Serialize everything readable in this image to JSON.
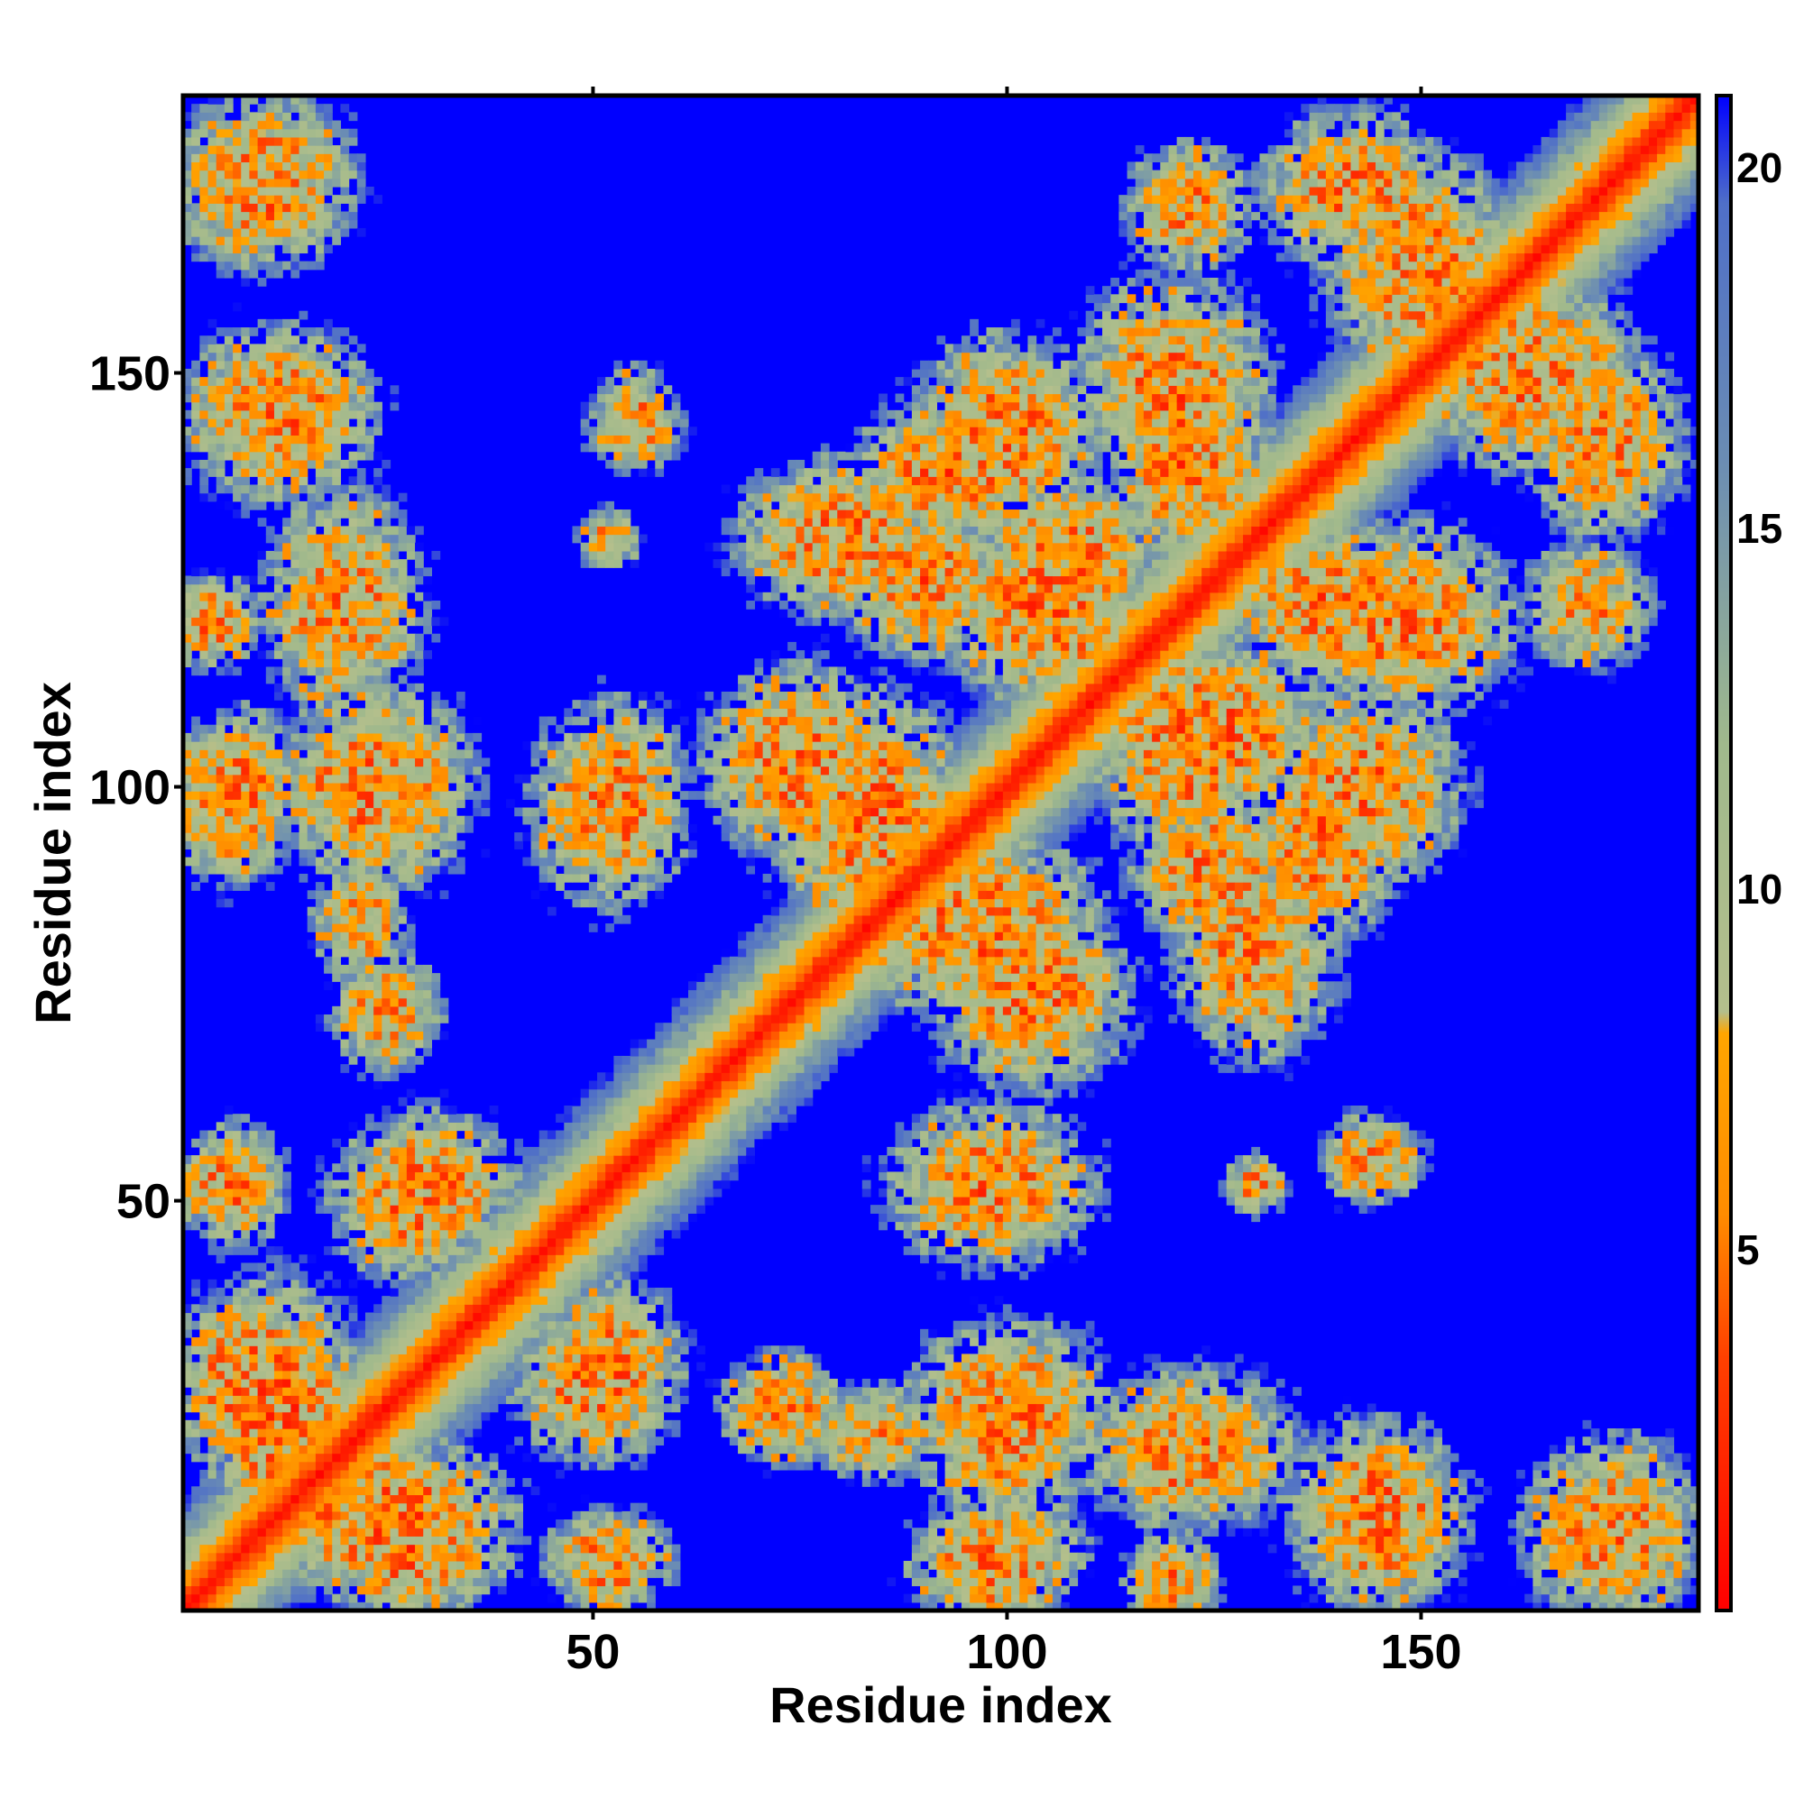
{
  "chart_data": {
    "type": "heatmap",
    "title": "",
    "xlabel": "Residue index",
    "ylabel": "Residue index",
    "xlim": [
      1,
      183
    ],
    "ylim": [
      1,
      183
    ],
    "x_ticks": [
      50,
      100,
      150
    ],
    "y_ticks": [
      50,
      100,
      150
    ],
    "x_tick_labels": [
      "50",
      "100",
      "150"
    ],
    "y_tick_labels": [
      "50",
      "100",
      "150"
    ],
    "colorbar": {
      "range": [
        0,
        21
      ],
      "ticks": [
        5,
        10,
        15,
        20
      ],
      "tick_labels": [
        "5",
        "10",
        "15",
        "20"
      ],
      "stops": [
        {
          "value": 0,
          "color": "#ff0000"
        },
        {
          "value": 3.5,
          "color": "#ff4000"
        },
        {
          "value": 5.5,
          "color": "#ff8c00"
        },
        {
          "value": 8,
          "color": "#ffa500"
        },
        {
          "value": 8.3,
          "color": "#b4bf8c"
        },
        {
          "value": 12,
          "color": "#a0b98c"
        },
        {
          "value": 16,
          "color": "#6a8cb4"
        },
        {
          "value": 19.5,
          "color": "#4f6fc8"
        },
        {
          "value": 21,
          "color": "#0000ff"
        }
      ]
    },
    "diagonal": {
      "dist_0": 1.0,
      "band_width_residues": 14
    },
    "contact_regions": [
      {
        "x": 10,
        "y": 172,
        "rx": 11,
        "ry": 10,
        "intensity": 0.45
      },
      {
        "x": 12,
        "y": 145,
        "rx": 12,
        "ry": 8,
        "intensity": 0.6
      },
      {
        "x": 4,
        "y": 120,
        "rx": 6,
        "ry": 6,
        "intensity": 0.4
      },
      {
        "x": 18,
        "y": 120,
        "rx": 8,
        "ry": 7,
        "intensity": 0.4
      },
      {
        "x": 6,
        "y": 98,
        "rx": 8,
        "ry": 10,
        "intensity": 0.55
      },
      {
        "x": 22,
        "y": 100,
        "rx": 12,
        "ry": 8,
        "intensity": 0.5
      },
      {
        "x": 5,
        "y": 52,
        "rx": 6,
        "ry": 6,
        "intensity": 0.4
      },
      {
        "x": 8,
        "y": 28,
        "rx": 9,
        "ry": 12,
        "intensity": 0.6
      },
      {
        "x": 22,
        "y": 84,
        "rx": 6,
        "ry": 8,
        "intensity": 0.35
      },
      {
        "x": 30,
        "y": 52,
        "rx": 11,
        "ry": 9,
        "intensity": 0.55
      },
      {
        "x": 25,
        "y": 12,
        "rx": 16,
        "ry": 10,
        "intensity": 0.7
      },
      {
        "x": 52,
        "y": 98,
        "rx": 10,
        "ry": 10,
        "intensity": 0.55
      },
      {
        "x": 50,
        "y": 28,
        "rx": 10,
        "ry": 10,
        "intensity": 0.5
      },
      {
        "x": 52,
        "y": 7,
        "rx": 8,
        "ry": 6,
        "intensity": 0.45
      },
      {
        "x": 73,
        "y": 25,
        "rx": 8,
        "ry": 7,
        "intensity": 0.35
      },
      {
        "x": 75,
        "y": 103,
        "rx": 12,
        "ry": 12,
        "intensity": 0.55
      },
      {
        "x": 80,
        "y": 130,
        "rx": 13,
        "ry": 10,
        "intensity": 0.55
      },
      {
        "x": 93,
        "y": 138,
        "rx": 12,
        "ry": 9,
        "intensity": 0.6
      },
      {
        "x": 98,
        "y": 52,
        "rx": 13,
        "ry": 10,
        "intensity": 0.5
      },
      {
        "x": 97,
        "y": 83,
        "rx": 15,
        "ry": 12,
        "intensity": 0.6
      },
      {
        "x": 100,
        "y": 24,
        "rx": 13,
        "ry": 12,
        "intensity": 0.55
      },
      {
        "x": 100,
        "y": 8,
        "rx": 10,
        "ry": 7,
        "intensity": 0.45
      },
      {
        "x": 107,
        "y": 127,
        "rx": 12,
        "ry": 12,
        "intensity": 0.55
      },
      {
        "x": 122,
        "y": 105,
        "rx": 12,
        "ry": 14,
        "intensity": 0.6
      },
      {
        "x": 120,
        "y": 148,
        "rx": 12,
        "ry": 14,
        "intensity": 0.55
      },
      {
        "x": 125,
        "y": 90,
        "rx": 10,
        "ry": 10,
        "intensity": 0.55
      },
      {
        "x": 122,
        "y": 20,
        "rx": 14,
        "ry": 10,
        "intensity": 0.45
      },
      {
        "x": 142,
        "y": 172,
        "rx": 12,
        "ry": 10,
        "intensity": 0.45
      },
      {
        "x": 140,
        "y": 122,
        "rx": 14,
        "ry": 10,
        "intensity": 0.6
      },
      {
        "x": 143,
        "y": 100,
        "rx": 12,
        "ry": 12,
        "intensity": 0.55
      },
      {
        "x": 145,
        "y": 12,
        "rx": 11,
        "ry": 12,
        "intensity": 0.6
      },
      {
        "x": 163,
        "y": 150,
        "rx": 14,
        "ry": 12,
        "intensity": 0.5
      },
      {
        "x": 170,
        "y": 122,
        "rx": 8,
        "ry": 8,
        "intensity": 0.35
      },
      {
        "x": 174,
        "y": 10,
        "rx": 10,
        "ry": 12,
        "intensity": 0.4
      },
      {
        "x": 145,
        "y": 55,
        "rx": 6,
        "ry": 5,
        "intensity": 0.3
      },
      {
        "x": 130,
        "y": 52,
        "rx": 4,
        "ry": 4,
        "intensity": 0.25
      },
      {
        "x": 55,
        "y": 143,
        "rx": 6,
        "ry": 5,
        "intensity": 0.3
      },
      {
        "x": 52,
        "y": 130,
        "rx": 4,
        "ry": 4,
        "intensity": 0.25
      }
    ]
  }
}
